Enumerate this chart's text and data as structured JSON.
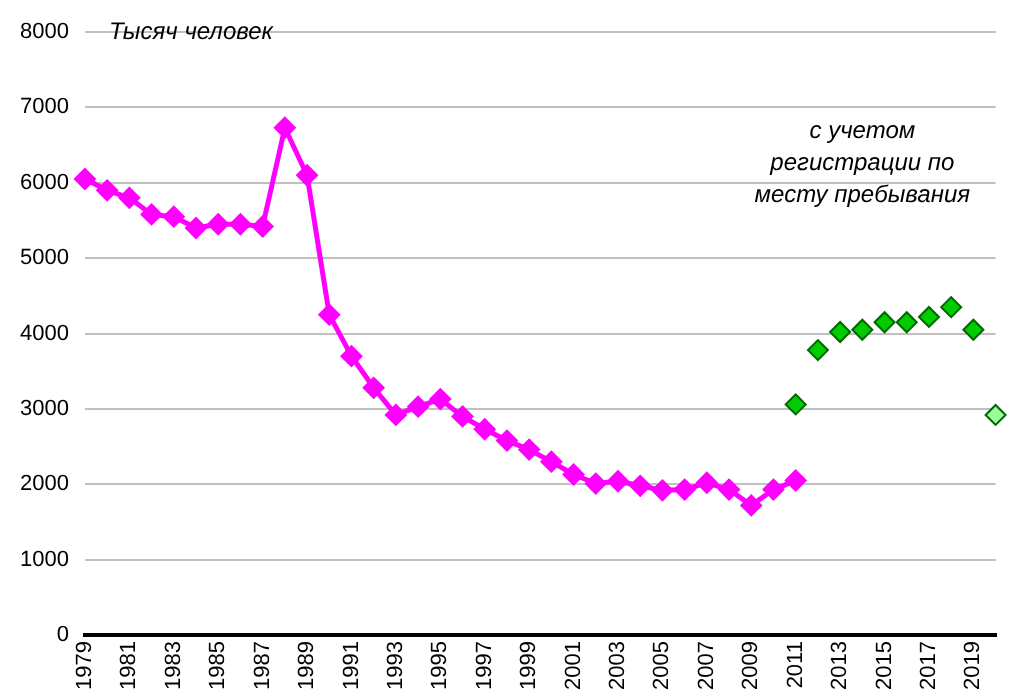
{
  "chart_data": {
    "type": "line",
    "ylabel": "Тысяч человек",
    "categories": [
      "1979",
      null,
      "1981",
      null,
      "1983",
      null,
      "1985",
      null,
      "1987",
      null,
      "1989",
      null,
      "1991",
      null,
      "1993",
      null,
      "1995",
      null,
      "1997",
      null,
      "1999",
      null,
      "2001",
      null,
      "2003",
      null,
      "2005",
      null,
      "2007",
      null,
      "2009",
      null,
      "2011",
      null,
      "2013",
      null,
      "2015",
      null,
      "2017",
      null,
      "2019",
      null
    ],
    "series": [
      {
        "type": "line",
        "color": "#ff00ff",
        "values": [
          6050,
          5900,
          5800,
          5580,
          5550,
          5400,
          5450,
          5450,
          5420,
          6730,
          6100,
          4250,
          3700,
          3280,
          2920,
          3030,
          3130,
          2900,
          2730,
          2580,
          2460,
          2300,
          2130,
          2010,
          2040,
          1980,
          1920,
          1930,
          2020,
          1930,
          1720,
          1930,
          2050,
          null,
          null,
          null,
          null,
          null,
          null,
          null,
          null,
          null
        ]
      },
      {
        "type": "scatter",
        "color": "#00cc00",
        "values": [
          null,
          null,
          null,
          null,
          null,
          null,
          null,
          null,
          null,
          null,
          null,
          null,
          null,
          null,
          null,
          null,
          null,
          null,
          null,
          null,
          null,
          null,
          null,
          null,
          null,
          null,
          null,
          null,
          null,
          null,
          null,
          null,
          3060,
          3780,
          4020,
          4050,
          4150,
          4150,
          4220,
          4350,
          4050,
          null
        ]
      },
      {
        "type": "scatter",
        "color": "#99ff99",
        "values": [
          null,
          null,
          null,
          null,
          null,
          null,
          null,
          null,
          null,
          null,
          null,
          null,
          null,
          null,
          null,
          null,
          null,
          null,
          null,
          null,
          null,
          null,
          null,
          null,
          null,
          null,
          null,
          null,
          null,
          null,
          null,
          null,
          null,
          null,
          null,
          null,
          null,
          null,
          null,
          null,
          null,
          2920
        ]
      }
    ],
    "annotations": [
      "с учетом регистрации по месту пребывания"
    ],
    "ylim": [
      0,
      8000
    ],
    "yticks": [
      0,
      1000,
      2000,
      3000,
      4000,
      5000,
      6000,
      7000,
      8000
    ],
    "grid": "y",
    "legend": false,
    "marker": "diamond"
  }
}
